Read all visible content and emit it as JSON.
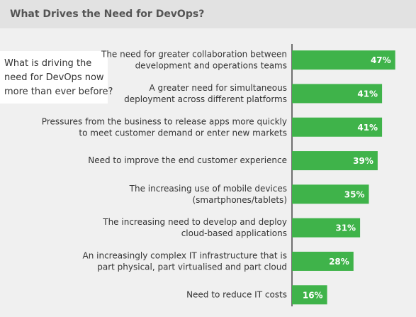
{
  "chart_data": {
    "type": "bar",
    "orientation": "horizontal",
    "title": "What Drives the Need for DevOps?",
    "annotation": "What is driving the\nneed for DevOps now\nmore than ever before?",
    "categories": [
      "The need for greater collaboration between\ndevelopment and operations teams",
      "A greater need for simultaneous\ndeployment across different platforms",
      "Pressures from the business to release apps more quickly\nto meet customer demand or enter new markets",
      "Need to improve the end customer experience",
      "The increasing use of mobile devices\n(smartphones/tablets)",
      "The increasing need to develop and deploy\ncloud-based applications",
      "An increasingly complex IT infrastructure that is\npart physical, part virtualised and part cloud",
      "Need to reduce IT costs"
    ],
    "values": [
      47,
      41,
      41,
      39,
      35,
      31,
      28,
      16
    ],
    "value_labels": [
      "47%",
      "41%",
      "41%",
      "39%",
      "35%",
      "31%",
      "28%",
      "16%"
    ],
    "color": "#3fb34a"
  }
}
